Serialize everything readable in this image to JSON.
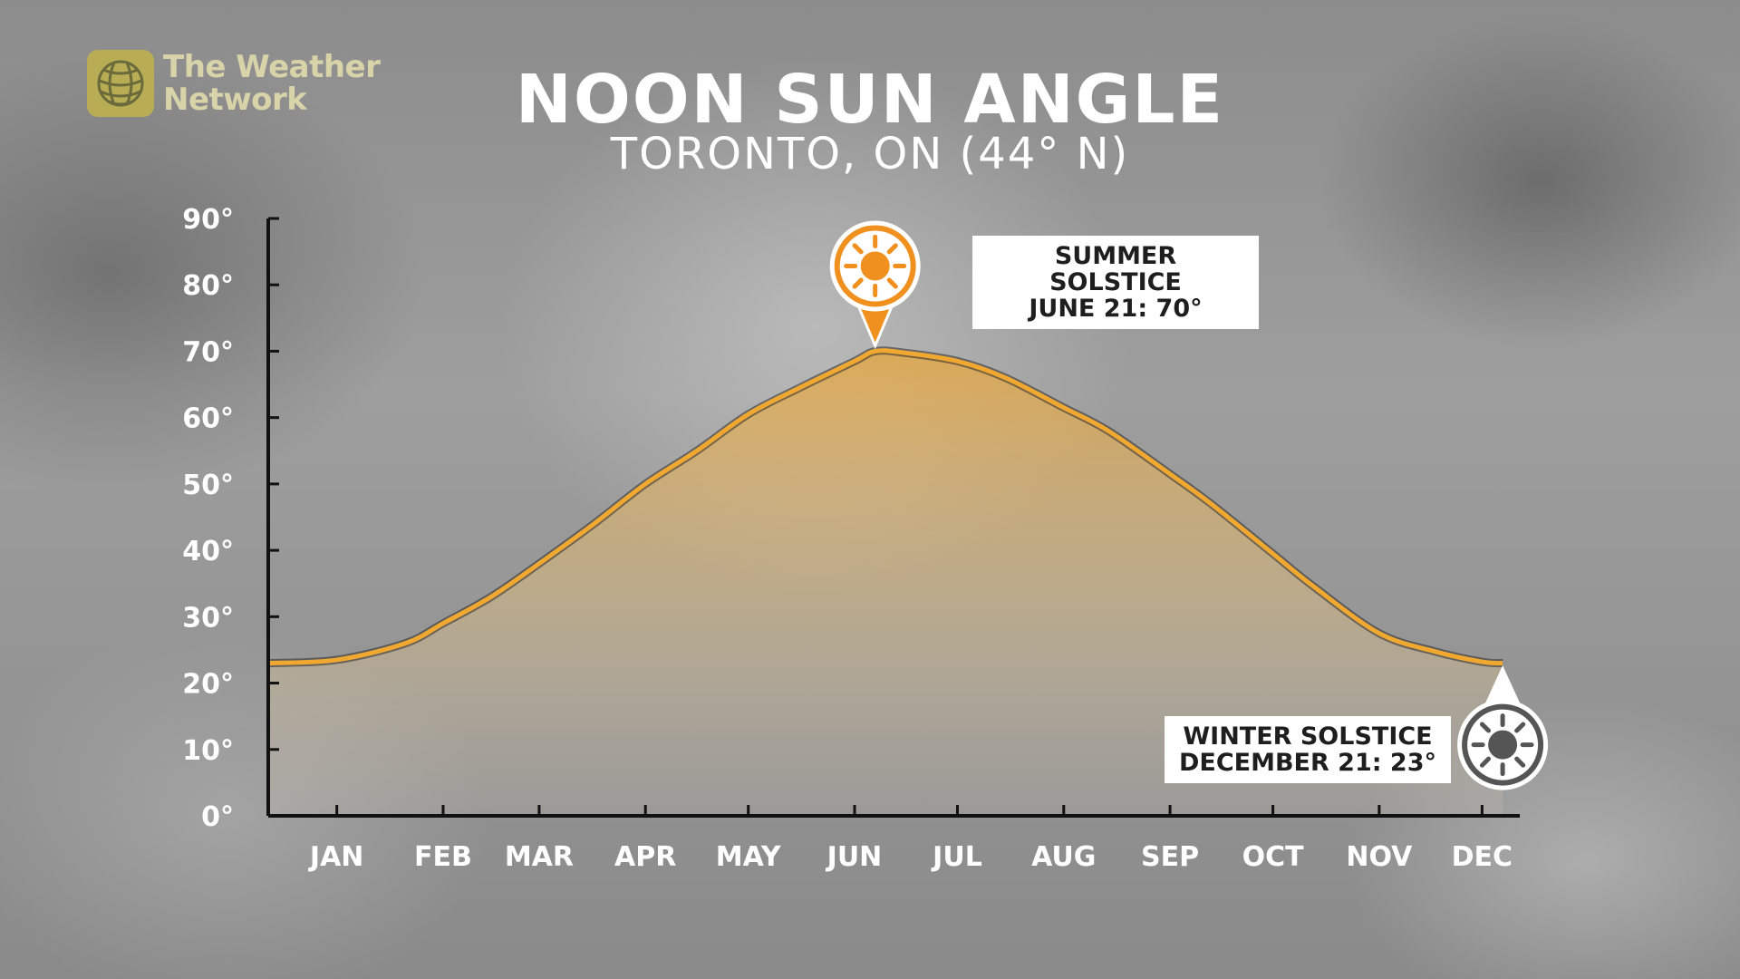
{
  "brand": {
    "line1": "The Weather",
    "line2": "Network",
    "color": "#b8ad55"
  },
  "title": "NOON SUN ANGLE",
  "subtitle": "TORONTO, ON (44° N)",
  "annotations": {
    "summer": {
      "line1": "SUMMER SOLSTICE",
      "line2": "JUNE 21: 70°",
      "icon": "sun-icon",
      "color": "#f0901e"
    },
    "winter": {
      "line1": "WINTER SOLSTICE",
      "line2": "DECEMBER 21: 23°",
      "icon": "sun-icon",
      "color": "#555555"
    }
  },
  "chart_data": {
    "type": "area",
    "title": "NOON SUN ANGLE",
    "subtitle": "TORONTO, ON (44° N)",
    "ylim": [
      0,
      90
    ],
    "y_ticks": [
      0,
      10,
      20,
      30,
      40,
      50,
      60,
      70,
      80,
      90
    ],
    "y_tick_labels": [
      "0°",
      "10°",
      "20°",
      "30°",
      "40°",
      "50°",
      "60°",
      "70°",
      "80°",
      "90°"
    ],
    "x_tick_labels": [
      "JAN",
      "FEB",
      "MAR",
      "APR",
      "MAY",
      "JUN",
      "JUL",
      "AUG",
      "SEP",
      "OCT",
      "NOV",
      "DEC"
    ],
    "x_unit": "day of year",
    "x_tick_days": [
      15,
      46,
      74,
      105,
      135,
      166,
      196,
      227,
      258,
      288,
      319,
      349
    ],
    "xlim": [
      -5,
      360
    ],
    "series": [
      {
        "values_x": [
          -5,
          15,
          35,
          46,
          60,
          74,
          90,
          105,
          120,
          135,
          150,
          166,
          172,
          180,
          196,
          210,
          227,
          240,
          258,
          270,
          288,
          300,
          319,
          335,
          349,
          355
        ],
        "values_y": [
          23,
          23.5,
          26,
          29,
          33,
          38,
          44,
          50,
          55,
          60.5,
          64.5,
          68.5,
          70,
          69.8,
          68.5,
          66,
          61.5,
          58,
          51.5,
          47,
          39.5,
          34.5,
          27.5,
          24.8,
          23.2,
          23
        ],
        "color": "#f0a830"
      }
    ],
    "grid": false,
    "legend": "none"
  }
}
